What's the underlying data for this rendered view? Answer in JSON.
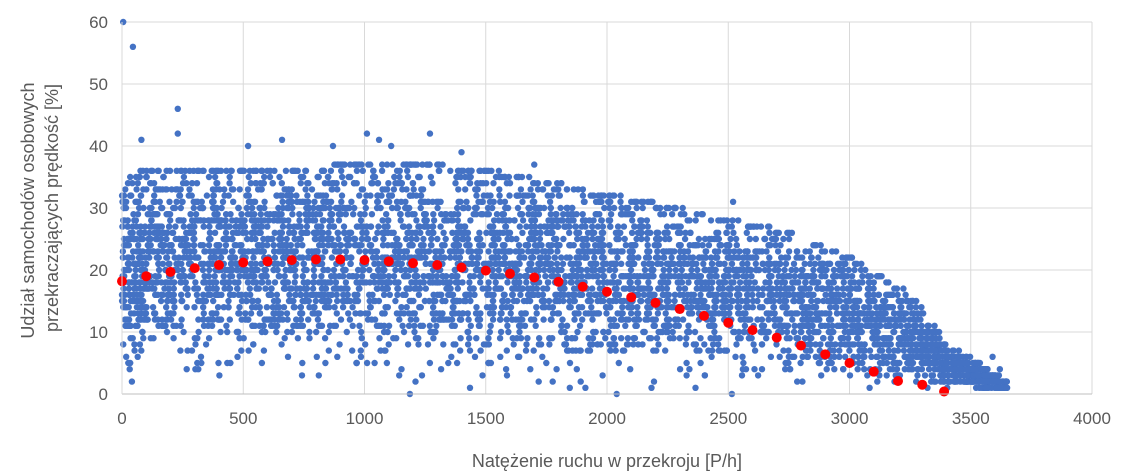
{
  "chart_data": {
    "type": "scatter",
    "xlabel": "Natężenie ruchu w przekroju [P/h]",
    "ylabel": [
      "Udział samochodów osobowych",
      "przekraczających prędkość [%]"
    ],
    "xlim": [
      0,
      4000
    ],
    "ylim": [
      0,
      60
    ],
    "xticks": [
      "0",
      "500",
      "1000",
      "1500",
      "2000",
      "2500",
      "3000",
      "3500",
      "4000"
    ],
    "yticks": [
      "0",
      "10",
      "20",
      "30",
      "40",
      "50",
      "60"
    ],
    "grid": true,
    "legend": "none",
    "series": [
      {
        "kind": "observations",
        "color": "#4472C4",
        "description_envelope": {
          "x": [
            0,
            100,
            250,
            500,
            750,
            1000,
            1250,
            1500,
            1750,
            2000,
            2250,
            2500,
            2750,
            3000,
            3250,
            3400,
            3650
          ],
          "y_upper": [
            34,
            36,
            36,
            36,
            36,
            37,
            37,
            36,
            34,
            32,
            30,
            28,
            26,
            22,
            16,
            8,
            2
          ],
          "y_lower": [
            0,
            0,
            0,
            0,
            0,
            0,
            0,
            0,
            0,
            0,
            0,
            0,
            0,
            0,
            0,
            0,
            0
          ]
        },
        "outliers": [
          {
            "x": 5,
            "y": 60
          },
          {
            "x": 45,
            "y": 56
          },
          {
            "x": 230,
            "y": 46
          },
          {
            "x": 230,
            "y": 42
          },
          {
            "x": 80,
            "y": 41
          },
          {
            "x": 520,
            "y": 40
          },
          {
            "x": 660,
            "y": 41
          },
          {
            "x": 870,
            "y": 40
          },
          {
            "x": 1010,
            "y": 42
          },
          {
            "x": 1060,
            "y": 41
          },
          {
            "x": 1110,
            "y": 40
          },
          {
            "x": 1270,
            "y": 42
          },
          {
            "x": 1400,
            "y": 39
          },
          {
            "x": 1700,
            "y": 37
          },
          {
            "x": 2520,
            "y": 31
          },
          {
            "x": 3590,
            "y": 6
          },
          {
            "x": 3620,
            "y": 4
          },
          {
            "x": 3650,
            "y": 1
          }
        ]
      },
      {
        "kind": "trend",
        "color": "#FF0000",
        "x": [
          0,
          100,
          200,
          300,
          400,
          500,
          600,
          700,
          800,
          900,
          1000,
          1100,
          1200,
          1300,
          1400,
          1500,
          1600,
          1700,
          1800,
          1900,
          2000,
          2100,
          2200,
          2300,
          2400,
          2500,
          2600,
          2700,
          2800,
          2900,
          3000,
          3100,
          3200,
          3300,
          3390
        ],
        "y": [
          18.2,
          19.0,
          19.7,
          20.3,
          20.8,
          21.2,
          21.4,
          21.6,
          21.7,
          21.7,
          21.6,
          21.4,
          21.1,
          20.8,
          20.4,
          19.9,
          19.4,
          18.8,
          18.1,
          17.3,
          16.5,
          15.6,
          14.7,
          13.7,
          12.6,
          11.5,
          10.3,
          9.1,
          7.8,
          6.4,
          5.0,
          3.6,
          2.1,
          1.5,
          0.4
        ]
      }
    ]
  }
}
